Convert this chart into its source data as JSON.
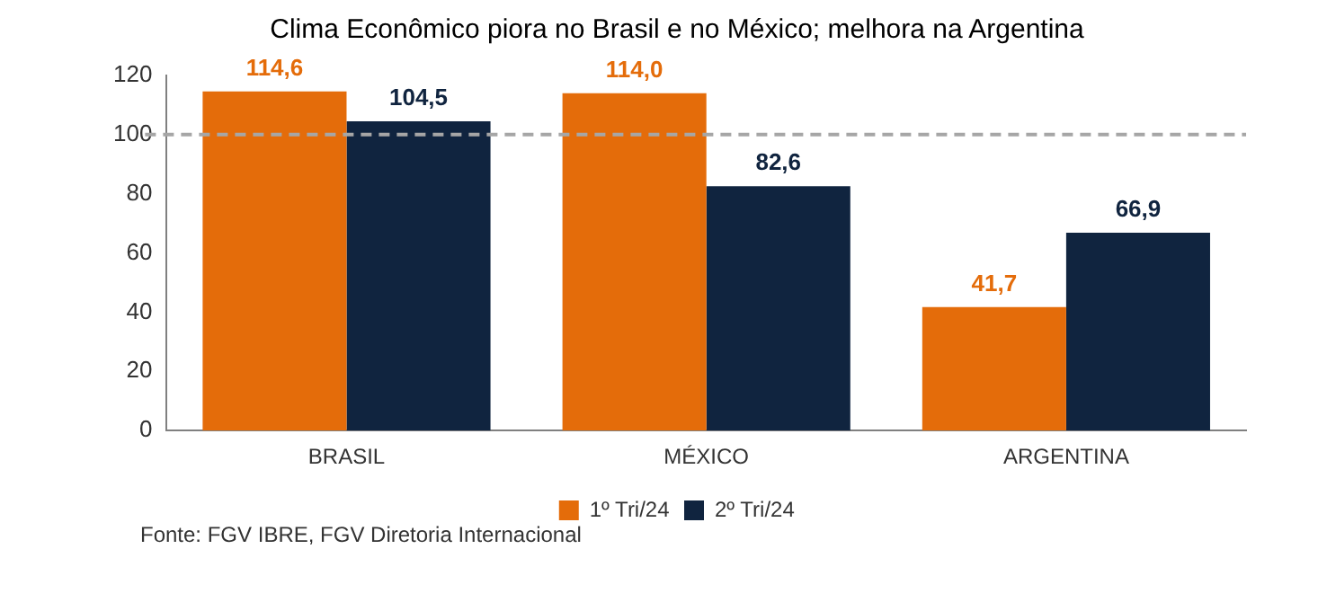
{
  "chart_data": {
    "type": "bar",
    "title": "Clima Econômico piora no Brasil e no México; melhora na Argentina",
    "categories": [
      "BRASIL",
      "MÉXICO",
      "ARGENTINA"
    ],
    "series": [
      {
        "name": "1º Tri/24",
        "color": "#e46c0a",
        "values": [
          114.6,
          114.0,
          41.7
        ],
        "value_labels": [
          "114,6",
          "114,0",
          "41,7"
        ]
      },
      {
        "name": "2º Tri/24",
        "color": "#10243f",
        "values": [
          104.5,
          82.6,
          66.9
        ],
        "value_labels": [
          "104,5",
          "82,6",
          "66,9"
        ]
      }
    ],
    "ylim": [
      0,
      120
    ],
    "yticks": [
      0,
      20,
      40,
      60,
      80,
      100,
      120
    ],
    "grid": false,
    "legend": "bottom",
    "ref_lines": [
      {
        "axis": "y",
        "value": 100,
        "color": "#a6a6a6",
        "line_style": "dashed"
      }
    ],
    "annotations": [
      "Fonte: FGV IBRE, FGV Diretoria Internacional"
    ]
  }
}
